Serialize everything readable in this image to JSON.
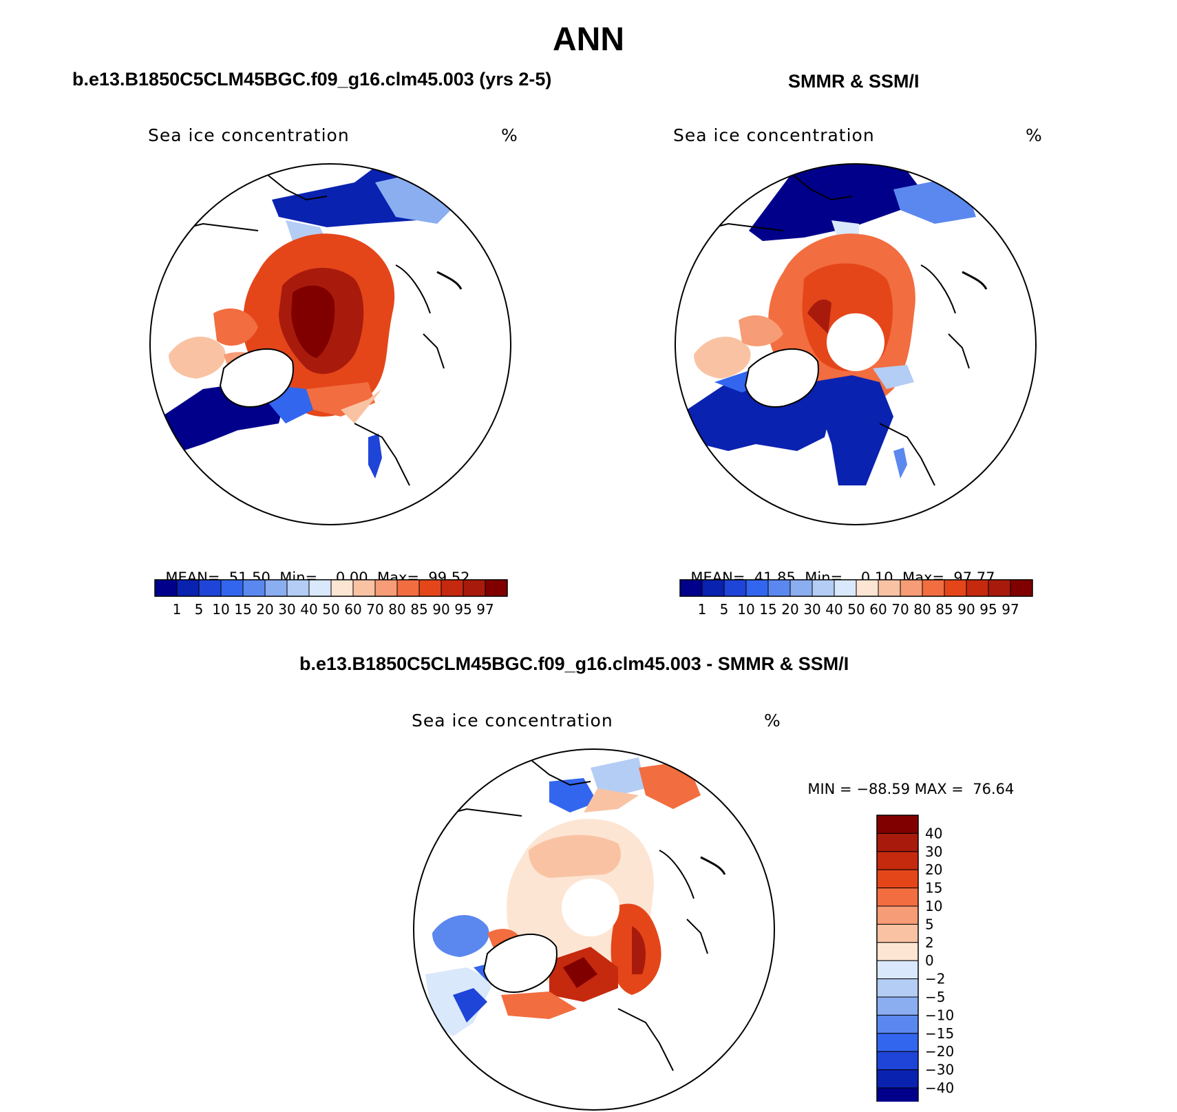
{
  "figure": {
    "season": "ANN"
  },
  "panels": {
    "model": {
      "case_title": "b.e13.B1850C5CLM45BGC.f09_g16.clm45.003 (yrs 2-5)",
      "variable": "Sea ice concentration",
      "units": "%",
      "mean_label": "MEAN=",
      "mean_value": "51.50",
      "min_label": "Min=",
      "min_value": "0.00",
      "max_label": "Max=",
      "max_value": "99.52"
    },
    "obs": {
      "case_title": "SMMR & SSM/I",
      "variable": "Sea ice concentration",
      "units": "%",
      "mean_label": "MEAN=",
      "mean_value": "41.85",
      "min_label": "Min=",
      "min_value": "0.10",
      "max_label": "Max=",
      "max_value": "97.77"
    },
    "diff": {
      "case_title": "b.e13.B1850C5CLM45BGC.f09_g16.clm45.003 - SMMR & SSM/I",
      "variable": "Sea ice concentration",
      "units": "%",
      "min_label": "MIN =",
      "min_value": "−88.59",
      "max_label": "MAX =",
      "max_value": "76.64"
    }
  },
  "chart_data": [
    {
      "type": "heatmap",
      "projection": "north-polar-stereographic",
      "title": "b.e13.B1850C5CLM45BGC.f09_g16.clm45.003 (yrs 2-5)",
      "variable": "Sea ice concentration",
      "units": "%",
      "stats": {
        "mean": 51.5,
        "min": 0.0,
        "max": 99.52
      },
      "colorbar": {
        "orientation": "horizontal",
        "levels": [
          "1",
          "5",
          "10",
          "15",
          "20",
          "30",
          "40",
          "50",
          "60",
          "70",
          "80",
          "85",
          "90",
          "95",
          "97"
        ],
        "colors": [
          "#00008b",
          "#0a22b0",
          "#1f44d8",
          "#3366ee",
          "#5b88ee",
          "#8aaef0",
          "#b4cdf4",
          "#d9e8fa",
          "#fde5d4",
          "#f9c3a3",
          "#f69c76",
          "#f26d3f",
          "#e4461a",
          "#c5290e",
          "#a81b0c",
          "#800000"
        ]
      }
    },
    {
      "type": "heatmap",
      "projection": "north-polar-stereographic",
      "title": "SMMR & SSM/I",
      "variable": "Sea ice concentration",
      "units": "%",
      "stats": {
        "mean": 41.85,
        "min": 0.1,
        "max": 97.77
      },
      "colorbar": {
        "orientation": "horizontal",
        "levels": [
          "1",
          "5",
          "10",
          "15",
          "20",
          "30",
          "40",
          "50",
          "60",
          "70",
          "80",
          "85",
          "90",
          "95",
          "97"
        ],
        "colors": [
          "#00008b",
          "#0a22b0",
          "#1f44d8",
          "#3366ee",
          "#5b88ee",
          "#8aaef0",
          "#b4cdf4",
          "#d9e8fa",
          "#fde5d4",
          "#f9c3a3",
          "#f69c76",
          "#f26d3f",
          "#e4461a",
          "#c5290e",
          "#a81b0c",
          "#800000"
        ]
      }
    },
    {
      "type": "heatmap",
      "projection": "north-polar-stereographic",
      "title": "b.e13.B1850C5CLM45BGC.f09_g16.clm45.003 - SMMR & SSM/I",
      "variable": "Sea ice concentration",
      "units": "%",
      "stats": {
        "min": -88.59,
        "max": 76.64
      },
      "colorbar": {
        "orientation": "vertical",
        "levels": [
          "40",
          "30",
          "20",
          "15",
          "10",
          "5",
          "2",
          "0",
          "−2",
          "−5",
          "−10",
          "−15",
          "−20",
          "−30",
          "−40"
        ],
        "colors": [
          "#800000",
          "#a81b0c",
          "#c5290e",
          "#e4461a",
          "#f26d3f",
          "#f69c76",
          "#f9c3a3",
          "#fde5d4",
          "#d9e8fa",
          "#b4cdf4",
          "#8aaef0",
          "#5b88ee",
          "#3366ee",
          "#1f44d8",
          "#0a22b0",
          "#00008b"
        ]
      }
    }
  ]
}
